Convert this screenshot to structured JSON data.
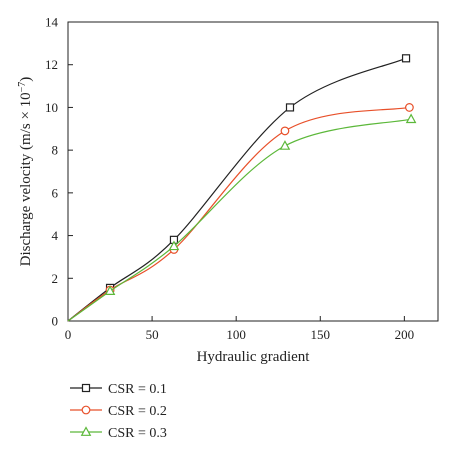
{
  "chart_data": {
    "type": "line",
    "xlabel": "Hydraulic gradient",
    "ylabel_main": "Discharge velocity (m/s × 10",
    "ylabel_sup": "−7",
    "ylabel_end": ")",
    "xlim": [
      0,
      220
    ],
    "ylim": [
      0,
      14
    ],
    "xticks": [
      0,
      50,
      100,
      150,
      200
    ],
    "yticks": [
      0,
      2,
      4,
      6,
      8,
      10,
      12,
      14
    ],
    "grid": false,
    "legend_position": "bottom-left, below plot",
    "series": [
      {
        "name": "CSR = 0.1",
        "color": "#222222",
        "marker": "square",
        "x": [
          0,
          25,
          63,
          132,
          201
        ],
        "y": [
          0,
          1.55,
          3.8,
          10.0,
          12.3
        ]
      },
      {
        "name": "CSR = 0.2",
        "color": "#e8502a",
        "marker": "circle",
        "x": [
          0,
          25,
          63,
          129,
          203
        ],
        "y": [
          0,
          1.45,
          3.35,
          8.9,
          10.0
        ]
      },
      {
        "name": "CSR = 0.3",
        "color": "#5cb83a",
        "marker": "triangle",
        "x": [
          0,
          25,
          63,
          129,
          204
        ],
        "y": [
          0,
          1.4,
          3.5,
          8.2,
          9.45
        ]
      }
    ]
  }
}
